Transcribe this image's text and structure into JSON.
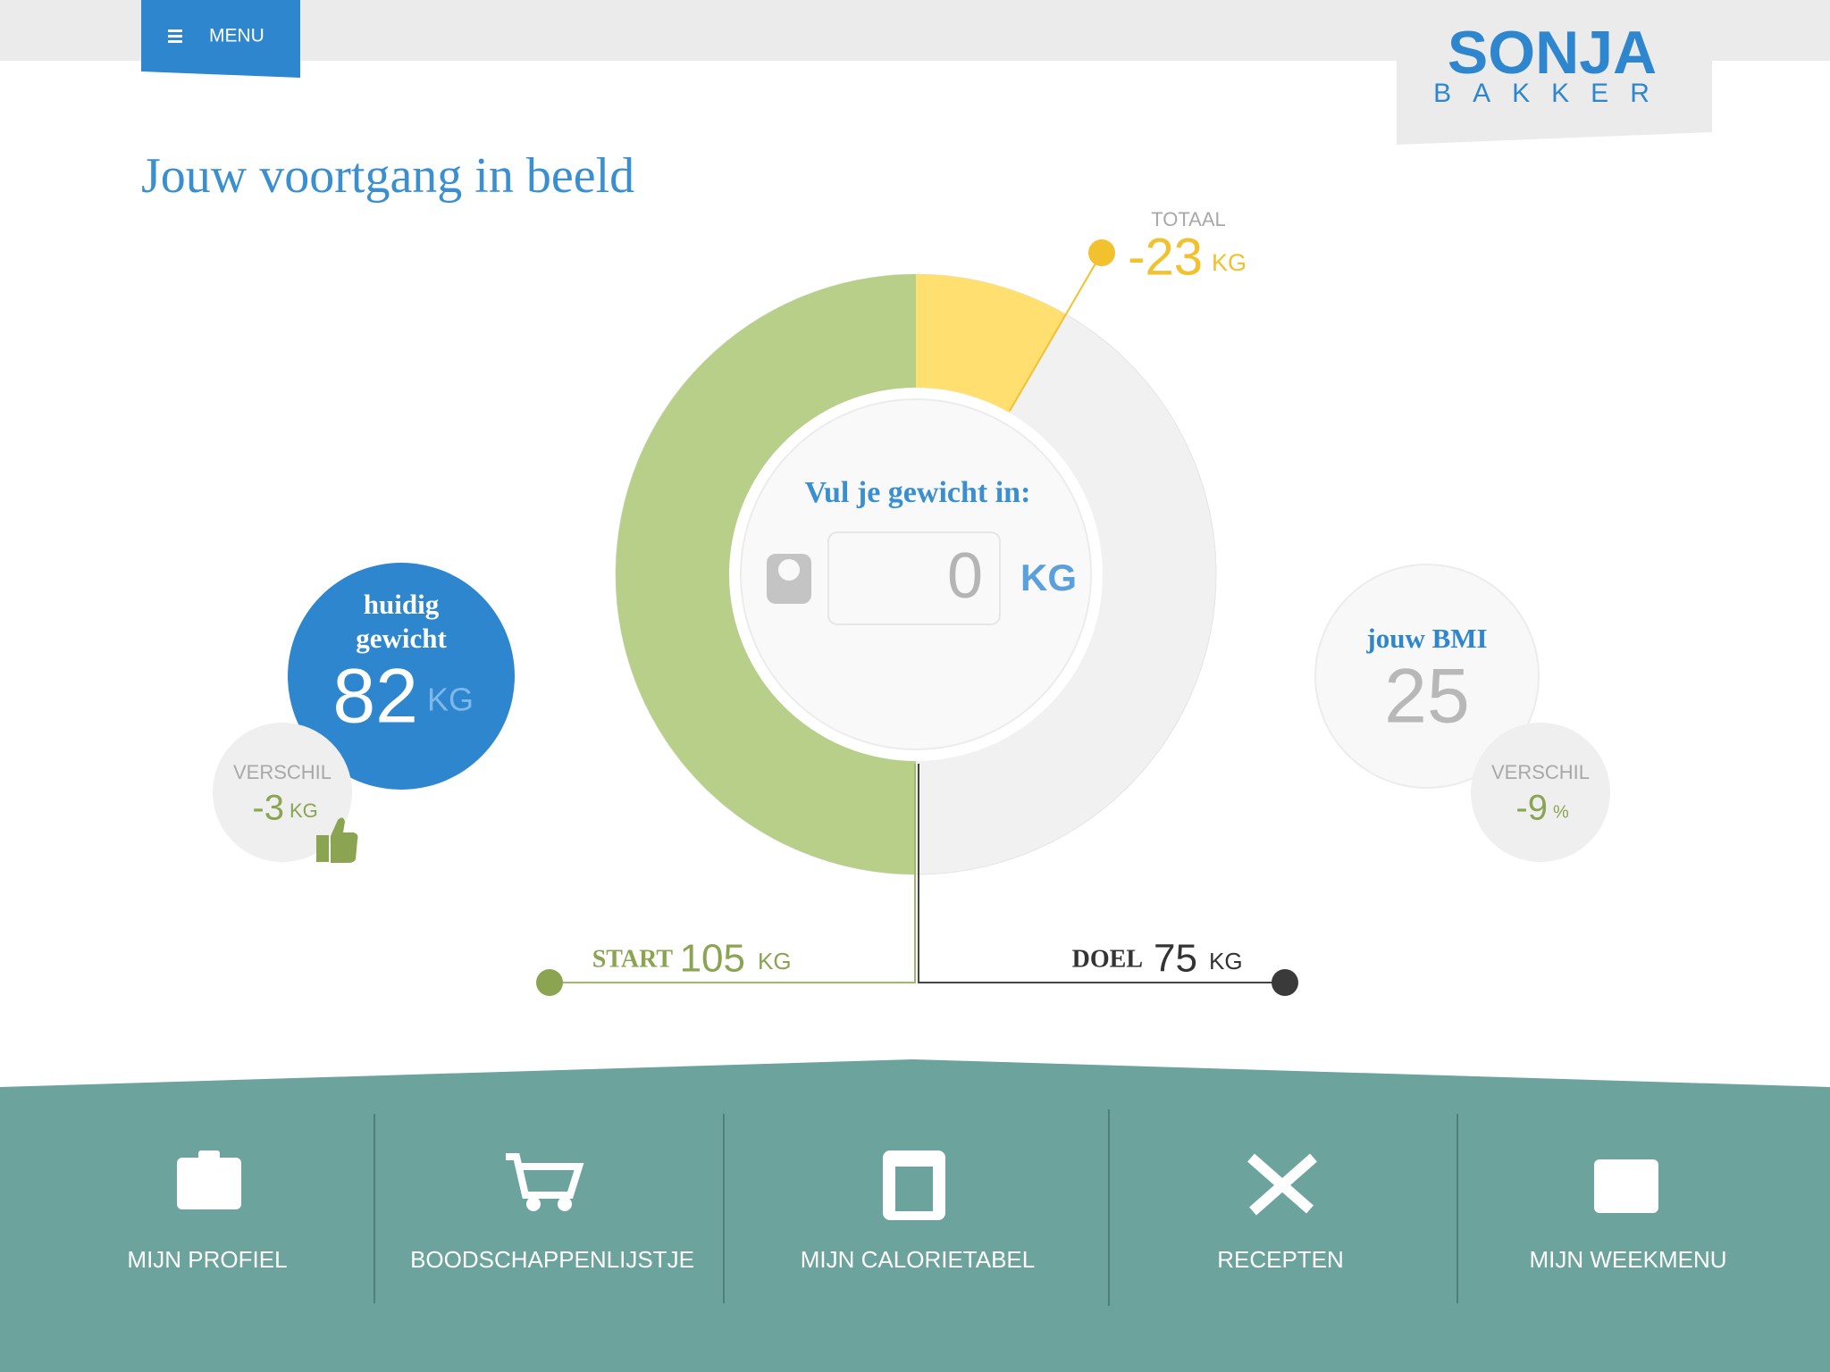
{
  "header": {
    "menu": "MENU",
    "logo_top": "SONJA",
    "logo_bottom": "BAKKER"
  },
  "title": "Jouw voortgang in beeld",
  "total": {
    "label": "TOTAAL",
    "value": -23,
    "unit": "KG"
  },
  "input": {
    "prompt": "Vul je gewicht in:",
    "value": 0,
    "unit": "KG"
  },
  "current": {
    "label_line1": "huidig",
    "label_line2": "gewicht",
    "value": 82,
    "unit": "KG"
  },
  "current_diff": {
    "label": "VERSCHIL",
    "value": -3,
    "unit": "KG"
  },
  "bmi": {
    "label": "jouw BMI",
    "value": 25
  },
  "bmi_diff": {
    "label": "VERSCHIL",
    "value": -9,
    "unit": "%"
  },
  "start": {
    "label": "START",
    "value": 105,
    "unit": "KG"
  },
  "goal": {
    "label": "DOEL",
    "value": 75,
    "unit": "KG"
  },
  "nav": [
    "MIJN PROFIEL",
    "BOODSCHAPPENLIJSTJE",
    "MIJN CALORIETABEL",
    "RECEPTEN",
    "MIJN WEEKMENU"
  ]
}
